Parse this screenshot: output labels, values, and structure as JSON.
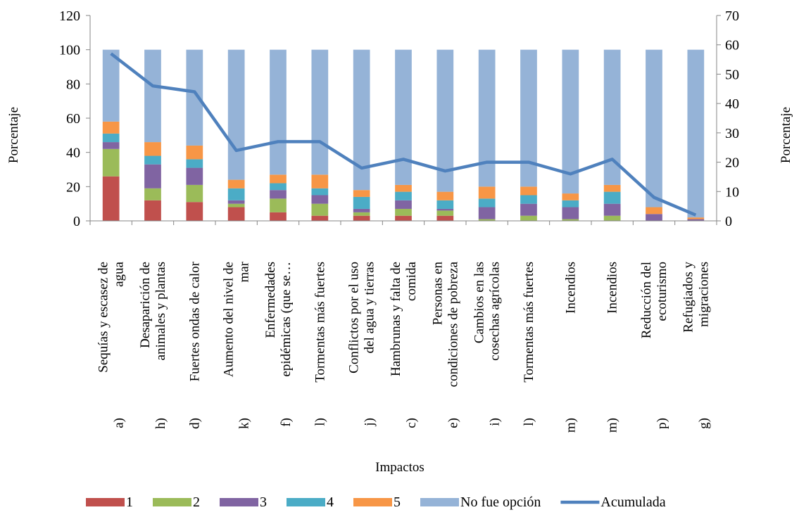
{
  "chart_data": {
    "type": "bar",
    "subtype": "stacked-bar-with-line-secondary-axis",
    "title": "",
    "xlabel": "Impactos",
    "ylabel": "Porcentaje",
    "y2label": "Porcentaje",
    "ylim": [
      0,
      120
    ],
    "y2lim": [
      0,
      70
    ],
    "yticks": [
      "0",
      "20",
      "40",
      "60",
      "80",
      "100",
      "120"
    ],
    "y2ticks": [
      "0",
      "10",
      "20",
      "30",
      "40",
      "50",
      "60",
      "70"
    ],
    "grid": false,
    "legend_position": "bottom",
    "categories": [
      [
        "a)",
        "Sequías y escasez de",
        "agua"
      ],
      [
        "h)",
        "Desaparición de",
        "animales y plantas"
      ],
      [
        "d)",
        "Fuertes ondas de calor"
      ],
      [
        "k)",
        "Aumento del nivel de",
        "mar"
      ],
      [
        "f)",
        "Enfermedades",
        "epidémicas (que se…"
      ],
      [
        "l)",
        "Tormentas más fuertes"
      ],
      [
        "j)",
        "Conflictos por el uso",
        "del agua y tierras"
      ],
      [
        "c)",
        "Hambrunas y falta de",
        "comida"
      ],
      [
        "e)",
        "Personas en",
        "condiciones de pobreza"
      ],
      [
        "i)",
        "Cambios en las",
        "cosechas agrícolas"
      ],
      [
        "l)",
        "Tormentas más fuertes"
      ],
      [
        "m)",
        "Incendios"
      ],
      [
        "m)",
        "Incendios"
      ],
      [
        "p)",
        "Reducción del",
        "ecoturismo"
      ],
      [
        "g)",
        "Refugiados y",
        "migraciones"
      ]
    ],
    "series": [
      {
        "name": "1",
        "color": "#c0504d",
        "axis": "left",
        "values": [
          26,
          12,
          11,
          8,
          5,
          3,
          3,
          3,
          3,
          0,
          0,
          0,
          0,
          0,
          0
        ]
      },
      {
        "name": "2",
        "color": "#9bbb59",
        "axis": "left",
        "values": [
          16,
          7,
          10,
          2,
          8,
          7,
          2,
          4,
          3,
          1,
          3,
          1,
          3,
          0,
          0
        ]
      },
      {
        "name": "3",
        "color": "#8064a2",
        "axis": "left",
        "values": [
          4,
          14,
          10,
          2,
          5,
          5,
          2,
          5,
          1,
          7,
          7,
          7,
          7,
          4,
          1
        ]
      },
      {
        "name": "4",
        "color": "#4bacc6",
        "axis": "left",
        "values": [
          5,
          5,
          5,
          7,
          4,
          4,
          7,
          5,
          5,
          5,
          5,
          4,
          7,
          0,
          0
        ]
      },
      {
        "name": "5",
        "color": "#f79646",
        "axis": "left",
        "values": [
          7,
          8,
          8,
          5,
          5,
          8,
          4,
          4,
          5,
          7,
          5,
          4,
          4,
          4,
          1
        ]
      },
      {
        "name": "No fue opción",
        "color": "#95b3d7",
        "axis": "left",
        "values": [
          42,
          54,
          56,
          76,
          73,
          73,
          82,
          79,
          83,
          80,
          80,
          84,
          79,
          92,
          98
        ]
      },
      {
        "name": "Acumulada",
        "type": "line",
        "color": "#4f81bd",
        "axis": "right",
        "values": [
          57,
          46,
          44,
          24,
          27,
          27,
          18,
          21,
          17,
          20,
          20,
          16,
          21,
          8,
          2
        ]
      }
    ]
  }
}
